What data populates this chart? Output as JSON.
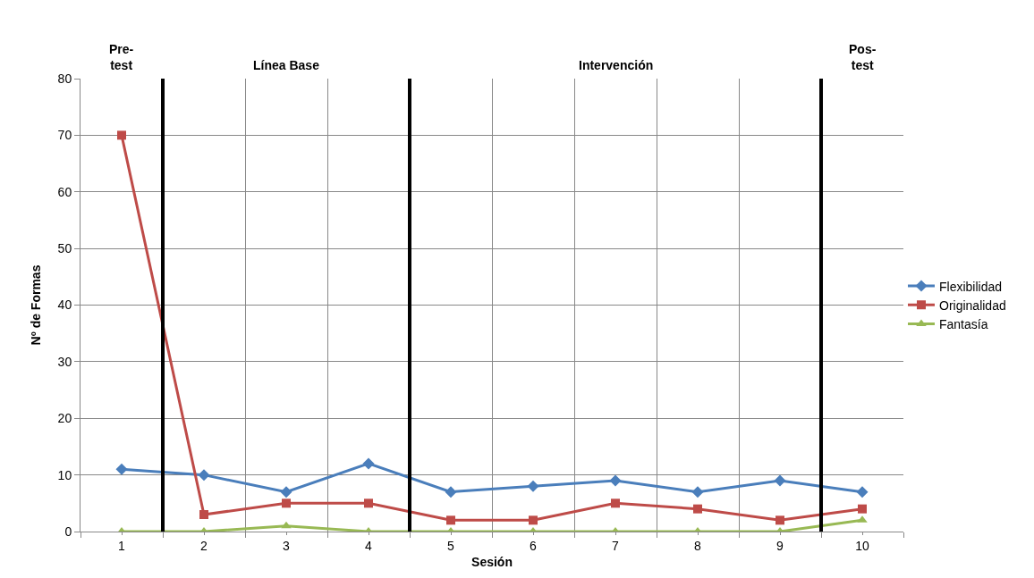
{
  "chart_data": {
    "type": "line",
    "xlabel": "Sesión",
    "ylabel": "Nº de Formas",
    "x": [
      1,
      2,
      3,
      4,
      5,
      6,
      7,
      8,
      9,
      10
    ],
    "xlim": [
      0.5,
      10.5
    ],
    "xticks": [
      1,
      2,
      3,
      4,
      5,
      6,
      7,
      8,
      9,
      10
    ],
    "ylim": [
      0,
      80
    ],
    "yticks": [
      0,
      10,
      20,
      30,
      40,
      50,
      60,
      70,
      80
    ],
    "grid": true,
    "legend": "right",
    "series": [
      {
        "name": "Flexibilidad",
        "color": "#4a7ebb",
        "marker": "diamond",
        "values": [
          11,
          10,
          7,
          12,
          7,
          8,
          9,
          7,
          9,
          7
        ]
      },
      {
        "name": "Originalidad",
        "color": "#be4b48",
        "marker": "square",
        "values": [
          70,
          3,
          5,
          5,
          2,
          2,
          5,
          4,
          2,
          4
        ]
      },
      {
        "name": "Fantasía",
        "color": "#98b954",
        "marker": "triangle",
        "values": [
          0,
          0,
          1,
          0,
          0,
          0,
          0,
          0,
          0,
          2
        ]
      }
    ],
    "ref_lines": [
      {
        "axis": "x",
        "value": 1.5,
        "color": "#000000"
      },
      {
        "axis": "x",
        "value": 4.5,
        "color": "#000000"
      },
      {
        "axis": "x",
        "value": 9.5,
        "color": "#000000"
      }
    ],
    "annotations": [
      "Pre-\ntest",
      "Línea Base",
      "Intervención",
      "Pos-\ntest"
    ]
  }
}
